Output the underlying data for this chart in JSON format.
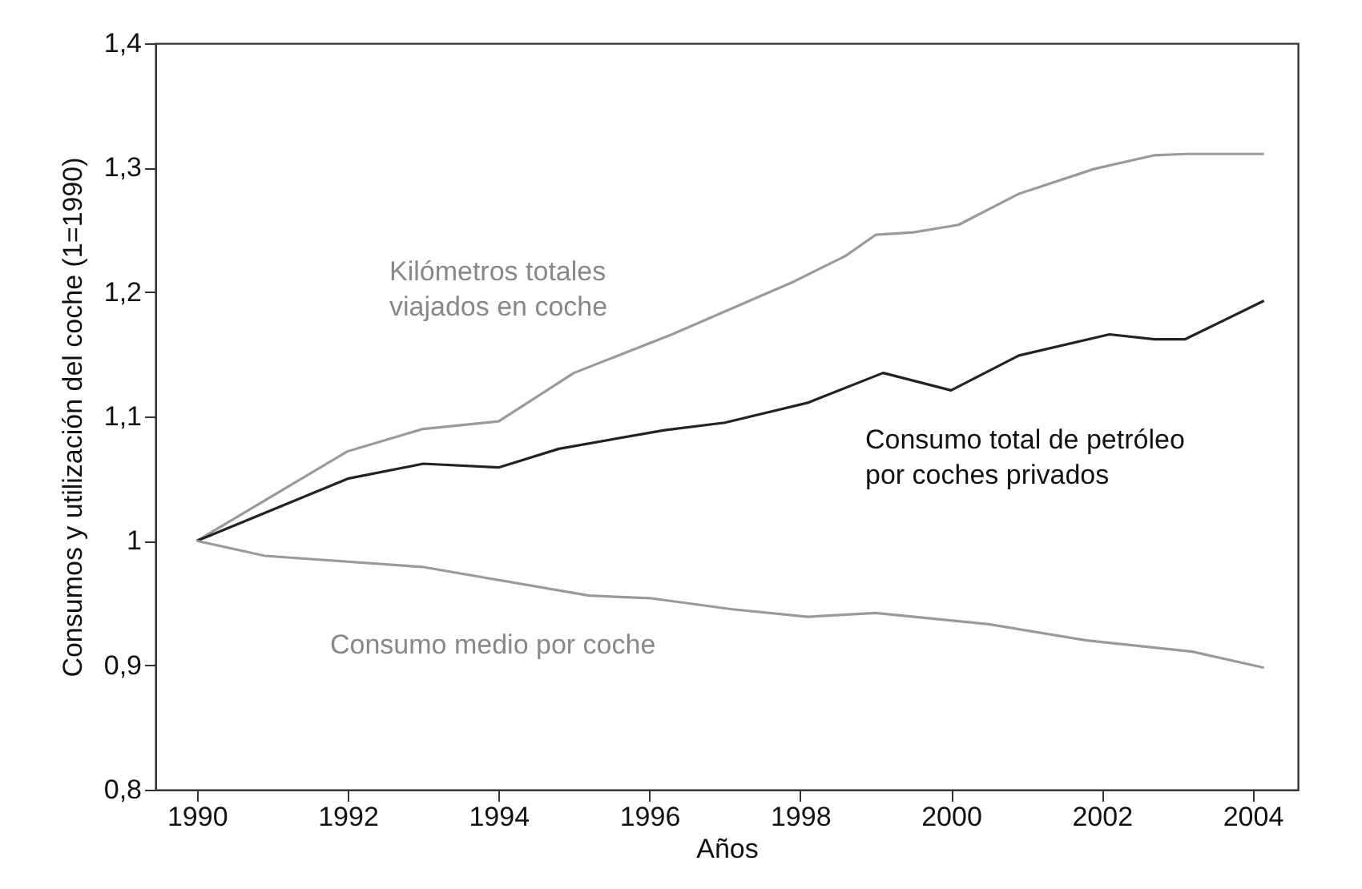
{
  "chart_data": {
    "type": "line",
    "xlabel": "Años",
    "ylabel": "Consumos y utilización del coche (1=1990)",
    "xlim": [
      1989.45,
      2004.6
    ],
    "xticks": [
      1990,
      1992,
      1994,
      1996,
      1998,
      2000,
      2002,
      2004
    ],
    "ylim": [
      0.8,
      1.4
    ],
    "yticks": [
      {
        "value": 0.8,
        "label": "0,8"
      },
      {
        "value": 0.9,
        "label": "0,9"
      },
      1,
      {
        "value": 1.1,
        "label": "1,1"
      },
      {
        "value": 1.2,
        "label": "1,2"
      },
      {
        "value": 1.3,
        "label": "1,3"
      },
      {
        "value": 1.4,
        "label": "1,4"
      }
    ],
    "grid": false,
    "marker": "none",
    "line_style": "solid",
    "series": [
      {
        "name": "Kilómetros totales viajados en coche",
        "color": "#9a9a9a",
        "x": [
          1990,
          1992,
          1993,
          1994,
          1995,
          1996.3,
          1997.9,
          1998.6,
          1999,
          1999.5,
          2000.1,
          2000.9,
          2001.9,
          2002.7,
          2003.1,
          2004.15
        ],
        "values": [
          1.0,
          1.072,
          1.09,
          1.096,
          1.135,
          1.166,
          1.208,
          1.229,
          1.246,
          1.248,
          1.254,
          1.279,
          1.299,
          1.31,
          1.311,
          1.311
        ]
      },
      {
        "name": "Consumo total de petróleo por coches privados",
        "color": "#222222",
        "x": [
          1990,
          1992,
          1993,
          1994,
          1994.8,
          1996.2,
          1997,
          1998.1,
          1999.1,
          2000,
          2000.9,
          2002.1,
          2002.7,
          2003.1,
          2004.15
        ],
        "values": [
          1.0,
          1.05,
          1.062,
          1.059,
          1.074,
          1.089,
          1.095,
          1.111,
          1.135,
          1.121,
          1.149,
          1.166,
          1.162,
          1.162,
          1.193
        ]
      },
      {
        "name": "Consumo medio por coche",
        "color": "#9a9a9a",
        "x": [
          1990,
          1990.9,
          1993,
          1995.2,
          1996,
          1997.1,
          1998.1,
          1999,
          2000.5,
          2001.8,
          2003.2,
          2004.15
        ],
        "values": [
          1.0,
          0.988,
          0.979,
          0.956,
          0.954,
          0.945,
          0.939,
          0.942,
          0.933,
          0.92,
          0.911,
          0.898
        ]
      }
    ]
  }
}
